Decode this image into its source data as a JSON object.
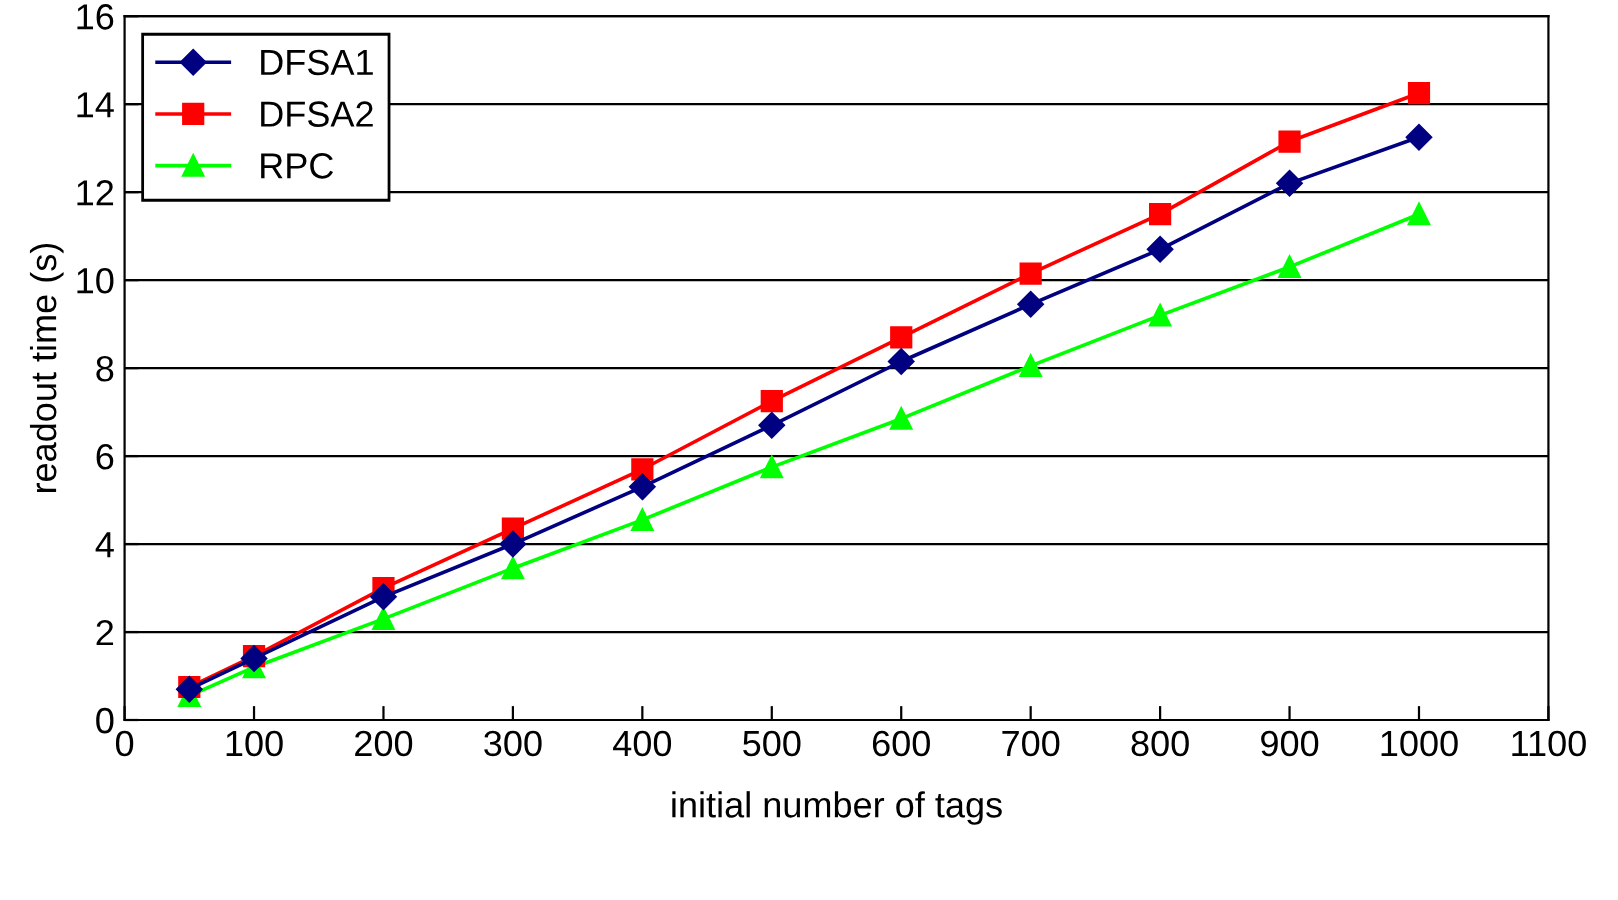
{
  "chart_data": {
    "type": "line",
    "xlabel": "initial number of tags",
    "ylabel": "readout time (s)",
    "x": [
      50,
      100,
      200,
      300,
      400,
      500,
      600,
      700,
      800,
      900,
      1000
    ],
    "series": [
      {
        "name": "DFSA1",
        "color": "#000080",
        "marker": "diamond",
        "values": [
          0.7,
          1.4,
          2.8,
          4.0,
          5.3,
          6.7,
          8.15,
          9.45,
          10.7,
          12.2,
          13.25
        ]
      },
      {
        "name": "DFSA2",
        "color": "#ff0000",
        "marker": "square",
        "values": [
          0.75,
          1.45,
          3.0,
          4.35,
          5.7,
          7.25,
          8.7,
          10.15,
          11.5,
          13.15,
          14.25
        ]
      },
      {
        "name": "RPC",
        "color": "#00ff00",
        "marker": "triangle",
        "values": [
          0.55,
          1.2,
          2.3,
          3.45,
          4.55,
          5.75,
          6.85,
          8.05,
          9.2,
          10.3,
          11.5
        ]
      }
    ],
    "xlim": [
      0,
      1100
    ],
    "xticks": [
      0,
      100,
      200,
      300,
      400,
      500,
      600,
      700,
      800,
      900,
      1000,
      1100
    ],
    "ylim": [
      0,
      16
    ],
    "yticks": [
      0,
      2,
      4,
      6,
      8,
      10,
      12,
      14,
      16
    ],
    "grid": "y",
    "legend": "top left",
    "line_style": "solid"
  }
}
